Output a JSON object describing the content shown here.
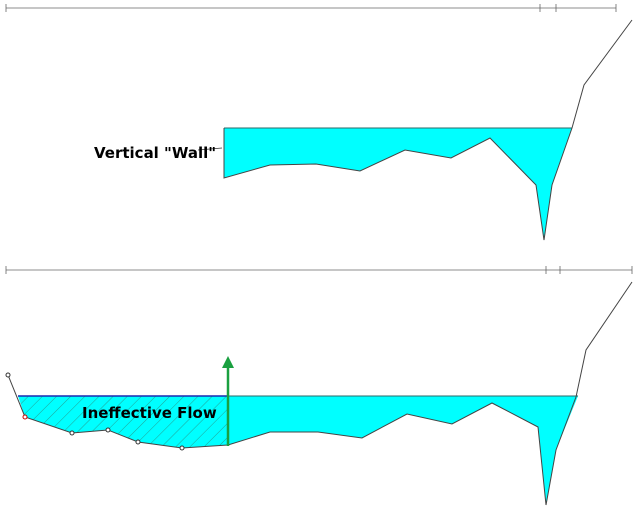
{
  "annotations": {
    "wall_label": "Vertical \"Wall\"",
    "ineffective_label": "Ineffective Flow"
  }
}
